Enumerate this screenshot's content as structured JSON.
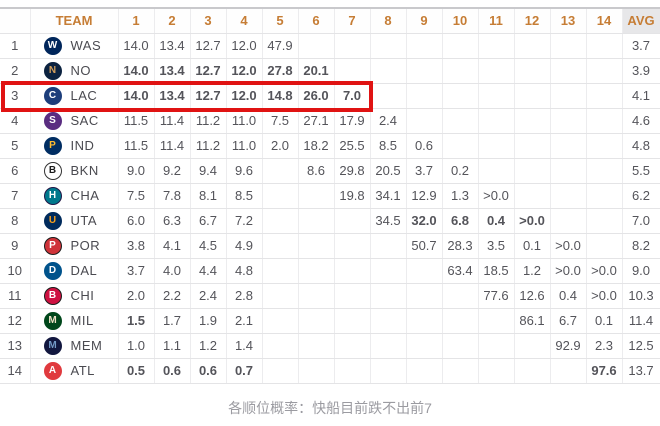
{
  "header": {
    "team_label": "TEAM",
    "pick_labels": [
      "1",
      "2",
      "3",
      "4",
      "5",
      "6",
      "7",
      "8",
      "9",
      "10",
      "11",
      "12",
      "13",
      "14"
    ],
    "avg_label": "AVG"
  },
  "rows": [
    {
      "rank": "1",
      "team": "WAS",
      "logo": {
        "name": "was-logo",
        "bg": "#00265b",
        "fg": "#ffffff",
        "border": "#00265b",
        "label": "W"
      },
      "values": [
        "14.0",
        "13.4",
        "12.7",
        "12.0",
        "47.9",
        "",
        "",
        "",
        "",
        "",
        "",
        "",
        "",
        ""
      ],
      "red_cols": [],
      "avg": "3.7"
    },
    {
      "rank": "2",
      "team": "NO",
      "logo": {
        "name": "no-logo",
        "bg": "#0c2340",
        "fg": "#d5a05c",
        "border": "#0c2340",
        "label": "N"
      },
      "values": [
        "14.0",
        "13.4",
        "12.7",
        "12.0",
        "27.8",
        "20.1",
        "",
        "",
        "",
        "",
        "",
        "",
        "",
        ""
      ],
      "red_cols": [
        1,
        2,
        3,
        4,
        5,
        6
      ],
      "avg": "3.9"
    },
    {
      "rank": "3",
      "team": "LAC",
      "logo": {
        "name": "lac-logo",
        "bg": "#1d3e7b",
        "fg": "#ffffff",
        "border": "#1d3e7b",
        "label": "C"
      },
      "values": [
        "14.0",
        "13.4",
        "12.7",
        "12.0",
        "14.8",
        "26.0",
        "7.0",
        "",
        "",
        "",
        "",
        "",
        "",
        ""
      ],
      "red_cols": [
        1,
        2,
        3,
        4,
        5,
        6,
        7
      ],
      "avg": "4.1",
      "highlighted": true
    },
    {
      "rank": "4",
      "team": "SAC",
      "logo": {
        "name": "sac-logo",
        "bg": "#5a2d81",
        "fg": "#ffffff",
        "border": "#5a2d81",
        "label": "S"
      },
      "values": [
        "11.5",
        "11.4",
        "11.2",
        "11.0",
        "7.5",
        "27.1",
        "17.9",
        "2.4",
        "",
        "",
        "",
        "",
        "",
        ""
      ],
      "red_cols": [],
      "avg": "4.6"
    },
    {
      "rank": "5",
      "team": "IND",
      "logo": {
        "name": "ind-logo",
        "bg": "#002d62",
        "fg": "#fdbb30",
        "border": "#002d62",
        "label": "P"
      },
      "values": [
        "11.5",
        "11.4",
        "11.2",
        "11.0",
        "2.0",
        "18.2",
        "25.5",
        "8.5",
        "0.6",
        "",
        "",
        "",
        "",
        ""
      ],
      "red_cols": [],
      "avg": "4.8"
    },
    {
      "rank": "6",
      "team": "BKN",
      "logo": {
        "name": "bkn-logo",
        "bg": "#ffffff",
        "fg": "#1a1a1a",
        "border": "#333333",
        "label": "B"
      },
      "values": [
        "9.0",
        "9.2",
        "9.4",
        "9.6",
        "",
        "8.6",
        "29.8",
        "20.5",
        "3.7",
        "0.2",
        "",
        "",
        "",
        ""
      ],
      "red_cols": [],
      "avg": "5.5"
    },
    {
      "rank": "7",
      "team": "CHA",
      "logo": {
        "name": "cha-logo",
        "bg": "#00788c",
        "fg": "#ffffff",
        "border": "#201747",
        "label": "H"
      },
      "values": [
        "7.5",
        "7.8",
        "8.1",
        "8.5",
        "",
        "",
        "19.8",
        "34.1",
        "12.9",
        "1.3",
        ">0.0",
        "",
        "",
        ""
      ],
      "red_cols": [],
      "avg": "6.2"
    },
    {
      "rank": "8",
      "team": "UTA",
      "logo": {
        "name": "uta-logo",
        "bg": "#002b5c",
        "fg": "#f9a01b",
        "border": "#002b5c",
        "label": "U"
      },
      "values": [
        "6.0",
        "6.3",
        "6.7",
        "7.2",
        "",
        "",
        "",
        "34.5",
        "32.0",
        "6.8",
        "0.4",
        ">0.0",
        "",
        ""
      ],
      "red_cols": [
        9,
        10,
        11,
        12
      ],
      "avg": "7.0"
    },
    {
      "rank": "9",
      "team": "POR",
      "logo": {
        "name": "por-logo",
        "bg": "#cf3339",
        "fg": "#ffffff",
        "border": "#1a1a1a",
        "label": "P"
      },
      "values": [
        "3.8",
        "4.1",
        "4.5",
        "4.9",
        "",
        "",
        "",
        "",
        "50.7",
        "28.3",
        "3.5",
        "0.1",
        ">0.0",
        ""
      ],
      "red_cols": [],
      "avg": "8.2"
    },
    {
      "rank": "10",
      "team": "DAL",
      "logo": {
        "name": "dal-logo",
        "bg": "#00538c",
        "fg": "#ffffff",
        "border": "#00538c",
        "label": "D"
      },
      "values": [
        "3.7",
        "4.0",
        "4.4",
        "4.8",
        "",
        "",
        "",
        "",
        "",
        "63.4",
        "18.5",
        "1.2",
        ">0.0",
        ">0.0"
      ],
      "red_cols": [],
      "avg": "9.0"
    },
    {
      "rank": "11",
      "team": "CHI",
      "logo": {
        "name": "chi-logo",
        "bg": "#ce1141",
        "fg": "#ffffff",
        "border": "#1a1a1a",
        "label": "B"
      },
      "values": [
        "2.0",
        "2.2",
        "2.4",
        "2.8",
        "",
        "",
        "",
        "",
        "",
        "",
        "77.6",
        "12.6",
        "0.4",
        ">0.0"
      ],
      "red_cols": [],
      "avg": "10.3"
    },
    {
      "rank": "12",
      "team": "MIL",
      "logo": {
        "name": "mil-logo",
        "bg": "#00471b",
        "fg": "#eee1c6",
        "border": "#00471b",
        "label": "M"
      },
      "values": [
        "1.5",
        "1.7",
        "1.9",
        "2.1",
        "",
        "",
        "",
        "",
        "",
        "",
        "",
        "86.1",
        "6.7",
        "0.1"
      ],
      "red_cols": [
        1
      ],
      "avg": "11.4"
    },
    {
      "rank": "13",
      "team": "MEM",
      "logo": {
        "name": "mem-logo",
        "bg": "#12173f",
        "fg": "#7399c6",
        "border": "#12173f",
        "label": "M"
      },
      "values": [
        "1.0",
        "1.1",
        "1.2",
        "1.4",
        "",
        "",
        "",
        "",
        "",
        "",
        "",
        "",
        "92.9",
        "2.3"
      ],
      "red_cols": [],
      "avg": "12.5"
    },
    {
      "rank": "14",
      "team": "ATL",
      "logo": {
        "name": "atl-logo",
        "bg": "#e03a3e",
        "fg": "#ffffff",
        "border": "#e03a3e",
        "label": "A"
      },
      "values": [
        "0.5",
        "0.6",
        "0.6",
        "0.7",
        "",
        "",
        "",
        "",
        "",
        "",
        "",
        "",
        "",
        "97.6"
      ],
      "red_cols": [
        1,
        2,
        3,
        4,
        14
      ],
      "avg": "13.7"
    }
  ],
  "highlight": {
    "team": "LAC",
    "through_column": 7,
    "border_color": "#e01313"
  },
  "footer": {
    "caption": "各顺位概率：快船目前跌不出前7"
  },
  "colors": {
    "header_text": "#c67d35",
    "red_value": "#b7222f",
    "normal_value": "#54545a",
    "highlight_border": "#e01313",
    "avg_column_bg": "#ededef",
    "grid_line": "#e4e4e6",
    "footer_text": "#9b9ba1"
  }
}
